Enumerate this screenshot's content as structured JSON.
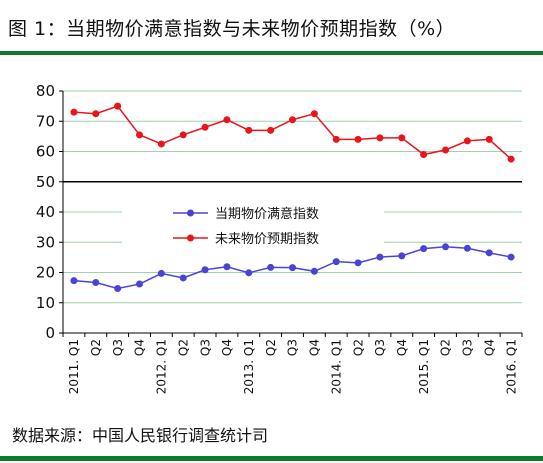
{
  "figure": {
    "title": "图 1：当期物价满意指数与未来物价预期指数（%）",
    "source": "数据来源：中国人民银行调查统计司",
    "rule_color": "#0f7a2e"
  },
  "chart_data": {
    "type": "line",
    "title": "",
    "xlabel": "",
    "ylabel": "",
    "ylim": [
      0,
      80
    ],
    "yticks": [
      0,
      10,
      20,
      30,
      40,
      50,
      60,
      70,
      80
    ],
    "ytick_labels": [
      "0",
      "10",
      "20",
      "30",
      "40",
      "50",
      "60",
      "70",
      "80"
    ],
    "grid": "horizontal",
    "legend_position": "center",
    "categories": [
      "2011. Q1",
      "Q2",
      "Q3",
      "Q4",
      "2012. Q1",
      "Q2",
      "Q3",
      "Q4",
      "2013. Q1",
      "Q2",
      "Q3",
      "Q4",
      "2014. Q1",
      "Q2",
      "Q3",
      "Q4",
      "2015. Q1",
      "Q2",
      "Q3",
      "Q4",
      "2016. Q1"
    ],
    "series": [
      {
        "name": "当期物价满意指数",
        "color": "#4a44d6",
        "values": [
          17.3,
          16.7,
          14.7,
          16.2,
          19.7,
          18.2,
          20.9,
          21.9,
          19.9,
          21.7,
          21.6,
          20.4,
          23.6,
          23.2,
          25.1,
          25.5,
          27.9,
          28.5,
          28.0,
          26.5,
          25.1
        ]
      },
      {
        "name": "未来物价预期指数",
        "color": "#e8151b",
        "values": [
          73.0,
          72.5,
          75.0,
          65.5,
          62.5,
          65.5,
          68.0,
          70.5,
          67.0,
          67.0,
          70.5,
          72.5,
          64.0,
          64.0,
          64.5,
          64.5,
          59.0,
          60.5,
          63.5,
          64.0,
          57.5
        ]
      }
    ]
  }
}
